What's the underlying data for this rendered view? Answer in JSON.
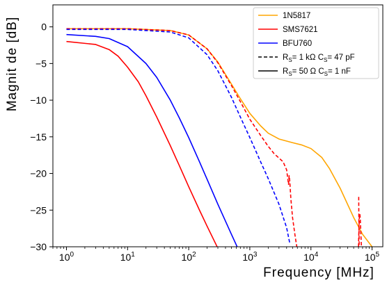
{
  "chart_data": {
    "type": "line",
    "title": "",
    "xlabel": "Frequency [MHz]",
    "ylabel": "Magnit  de [dB]",
    "xscale": "log",
    "xlim": [
      0.6,
      150000
    ],
    "ylim": [
      -30,
      3
    ],
    "grid": false,
    "legend_position": "top-right",
    "x_tick_labels": [
      "10^0",
      "10^1",
      "10^2",
      "10^3",
      "10^4",
      "10^5"
    ],
    "y_tick_labels": [
      "0",
      "−5",
      "−10",
      "−15",
      "−20",
      "−25",
      "−30"
    ],
    "series": [
      {
        "name": "1N5817",
        "color": "#ffa500",
        "style": "solid",
        "x": [
          1,
          10,
          50,
          100,
          200,
          300,
          500,
          700,
          1000,
          1500,
          2000,
          3000,
          5000,
          7000,
          10000,
          15000,
          20000,
          30000,
          50000,
          70000,
          100000
        ],
        "y": [
          -0.25,
          -0.25,
          -0.5,
          -1.1,
          -3.0,
          -4.8,
          -7.8,
          -9.8,
          -11.8,
          -13.5,
          -14.5,
          -15.3,
          -15.8,
          -16.1,
          -16.6,
          -17.8,
          -19.3,
          -22.0,
          -26.0,
          -28.3,
          -30
        ]
      },
      {
        "name": "SMS7621",
        "color": "#ff0000",
        "style": "solid",
        "x": [
          1,
          3,
          5,
          7,
          10,
          15,
          20,
          30,
          50,
          70,
          100,
          150,
          200,
          300,
          400
        ],
        "y": [
          -2.0,
          -2.4,
          -3.1,
          -4.0,
          -5.5,
          -7.5,
          -9.4,
          -12.3,
          -16.2,
          -18.9,
          -21.8,
          -25.0,
          -27.2,
          -30.2,
          -32.5
        ]
      },
      {
        "name": "BFU760",
        "color": "#0000ff",
        "style": "solid",
        "x": [
          1,
          3,
          5,
          10,
          20,
          30,
          50,
          70,
          100,
          150,
          200,
          300,
          500,
          800
        ],
        "y": [
          -1.05,
          -1.3,
          -1.6,
          -2.7,
          -5.0,
          -6.9,
          -10.0,
          -12.4,
          -15.1,
          -18.4,
          -20.8,
          -24.2,
          -28.3,
          -32.0
        ]
      },
      {
        "name": "",
        "color": "#ff0000",
        "style": "dashed",
        "x": [
          1,
          10,
          50,
          100,
          200,
          300,
          500,
          700,
          1000,
          1500,
          2000,
          2500,
          3000,
          3500,
          4000,
          4300,
          4400,
          4500,
          4700,
          5000,
          5500,
          6000,
          6300
        ],
        "y": [
          -0.25,
          -0.25,
          -0.5,
          -1.1,
          -3.0,
          -4.9,
          -8.0,
          -10.2,
          -12.6,
          -14.8,
          -16.3,
          -17.3,
          -17.9,
          -18.4,
          -19.5,
          -21.5,
          -20.3,
          -21.0,
          -23.5,
          -26.0,
          -28.5,
          -30.5,
          -31.0
        ]
      },
      {
        "name": "",
        "color": "#ff0000",
        "style": "dashed",
        "x": [
          60000,
          61000,
          62000,
          63000,
          64000,
          65000,
          67000
        ],
        "y": [
          -30,
          -27.5,
          -26.0,
          -25.5,
          -26.0,
          -27.5,
          -30
        ]
      },
      {
        "name": "",
        "color": "#0000ff",
        "style": "dashed",
        "x": [
          1,
          10,
          50,
          100,
          200,
          300,
          500,
          700,
          1000,
          1500,
          2000,
          3000,
          4000,
          4500
        ],
        "y": [
          -0.35,
          -0.35,
          -0.7,
          -1.5,
          -3.8,
          -6.0,
          -9.6,
          -12.3,
          -15.1,
          -18.4,
          -20.7,
          -24.2,
          -27.4,
          -29.5
        ]
      },
      {
        "name": "",
        "color": "#ff0000",
        "style": "dashed",
        "x": [
          60500,
          60800,
          61200,
          61600
        ],
        "y": [
          -23.2,
          -26.0,
          -28.0,
          -30
        ]
      }
    ],
    "legend": [
      {
        "label": "1N5817",
        "color": "#ffa500",
        "style": "solid"
      },
      {
        "label": "SMS7621",
        "color": "#ff0000",
        "style": "solid"
      },
      {
        "label": "BFU760",
        "color": "#0000ff",
        "style": "solid"
      },
      {
        "parts": [
          "R",
          "S",
          "= 1 kΩ C",
          "S",
          "= 47 pF"
        ],
        "color": "#000000",
        "style": "dashed"
      },
      {
        "parts": [
          "R",
          "S",
          "= 50 Ω C",
          "S",
          "= 1 nF"
        ],
        "color": "#000000",
        "style": "solid"
      }
    ]
  }
}
